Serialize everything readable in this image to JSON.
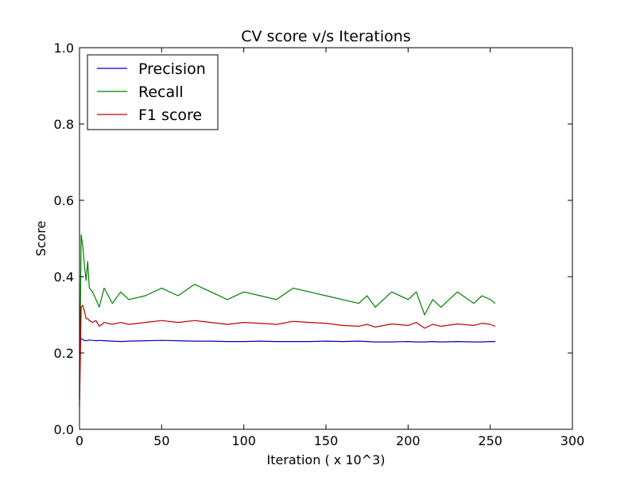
{
  "chart_data": {
    "type": "line",
    "title": "CV score v/s Iterations",
    "xlabel": "Iteration ( x 10^3)",
    "ylabel": "Score",
    "xlim": [
      0,
      300
    ],
    "ylim": [
      0.0,
      1.0
    ],
    "xticks": [
      0,
      50,
      100,
      150,
      200,
      250,
      300
    ],
    "xtick_labels": [
      "0",
      "50",
      "100",
      "150",
      "200",
      "250",
      "300"
    ],
    "yticks": [
      0.0,
      0.2,
      0.4,
      0.6,
      0.8,
      1.0
    ],
    "ytick_labels": [
      "0.0",
      "0.2",
      "0.4",
      "0.6",
      "0.8",
      "1.0"
    ],
    "grid": false,
    "legend_position": "top-left",
    "x": [
      0,
      1,
      2,
      3,
      4,
      5,
      6,
      8,
      10,
      12,
      15,
      20,
      25,
      30,
      40,
      50,
      60,
      70,
      80,
      90,
      100,
      110,
      120,
      130,
      140,
      150,
      160,
      170,
      175,
      180,
      190,
      200,
      205,
      210,
      215,
      220,
      230,
      240,
      245,
      250,
      253
    ],
    "series": [
      {
        "name": "Precision",
        "color": "#0000bf",
        "values": [
          0.24,
          0.238,
          0.235,
          0.233,
          0.232,
          0.233,
          0.234,
          0.233,
          0.232,
          0.233,
          0.232,
          0.231,
          0.23,
          0.231,
          0.232,
          0.233,
          0.232,
          0.231,
          0.231,
          0.23,
          0.23,
          0.231,
          0.23,
          0.23,
          0.23,
          0.231,
          0.23,
          0.231,
          0.23,
          0.229,
          0.229,
          0.23,
          0.229,
          0.229,
          0.23,
          0.229,
          0.23,
          0.229,
          0.229,
          0.23,
          0.23
        ]
      },
      {
        "name": "Recall",
        "color": "#007f00",
        "values": [
          0.08,
          0.51,
          0.48,
          0.43,
          0.39,
          0.44,
          0.37,
          0.36,
          0.34,
          0.32,
          0.37,
          0.33,
          0.36,
          0.34,
          0.35,
          0.37,
          0.35,
          0.38,
          0.36,
          0.34,
          0.36,
          0.35,
          0.34,
          0.37,
          0.36,
          0.35,
          0.34,
          0.33,
          0.35,
          0.32,
          0.36,
          0.34,
          0.36,
          0.3,
          0.34,
          0.32,
          0.36,
          0.33,
          0.35,
          0.34,
          0.33
        ]
      },
      {
        "name": "F1 score",
        "color": "#bf0000",
        "values": [
          0.06,
          0.32,
          0.325,
          0.31,
          0.29,
          0.29,
          0.285,
          0.28,
          0.285,
          0.27,
          0.28,
          0.275,
          0.28,
          0.275,
          0.28,
          0.285,
          0.28,
          0.285,
          0.28,
          0.275,
          0.28,
          0.278,
          0.275,
          0.283,
          0.28,
          0.278,
          0.272,
          0.27,
          0.275,
          0.268,
          0.276,
          0.272,
          0.28,
          0.265,
          0.275,
          0.27,
          0.276,
          0.272,
          0.278,
          0.275,
          0.27
        ]
      }
    ]
  }
}
